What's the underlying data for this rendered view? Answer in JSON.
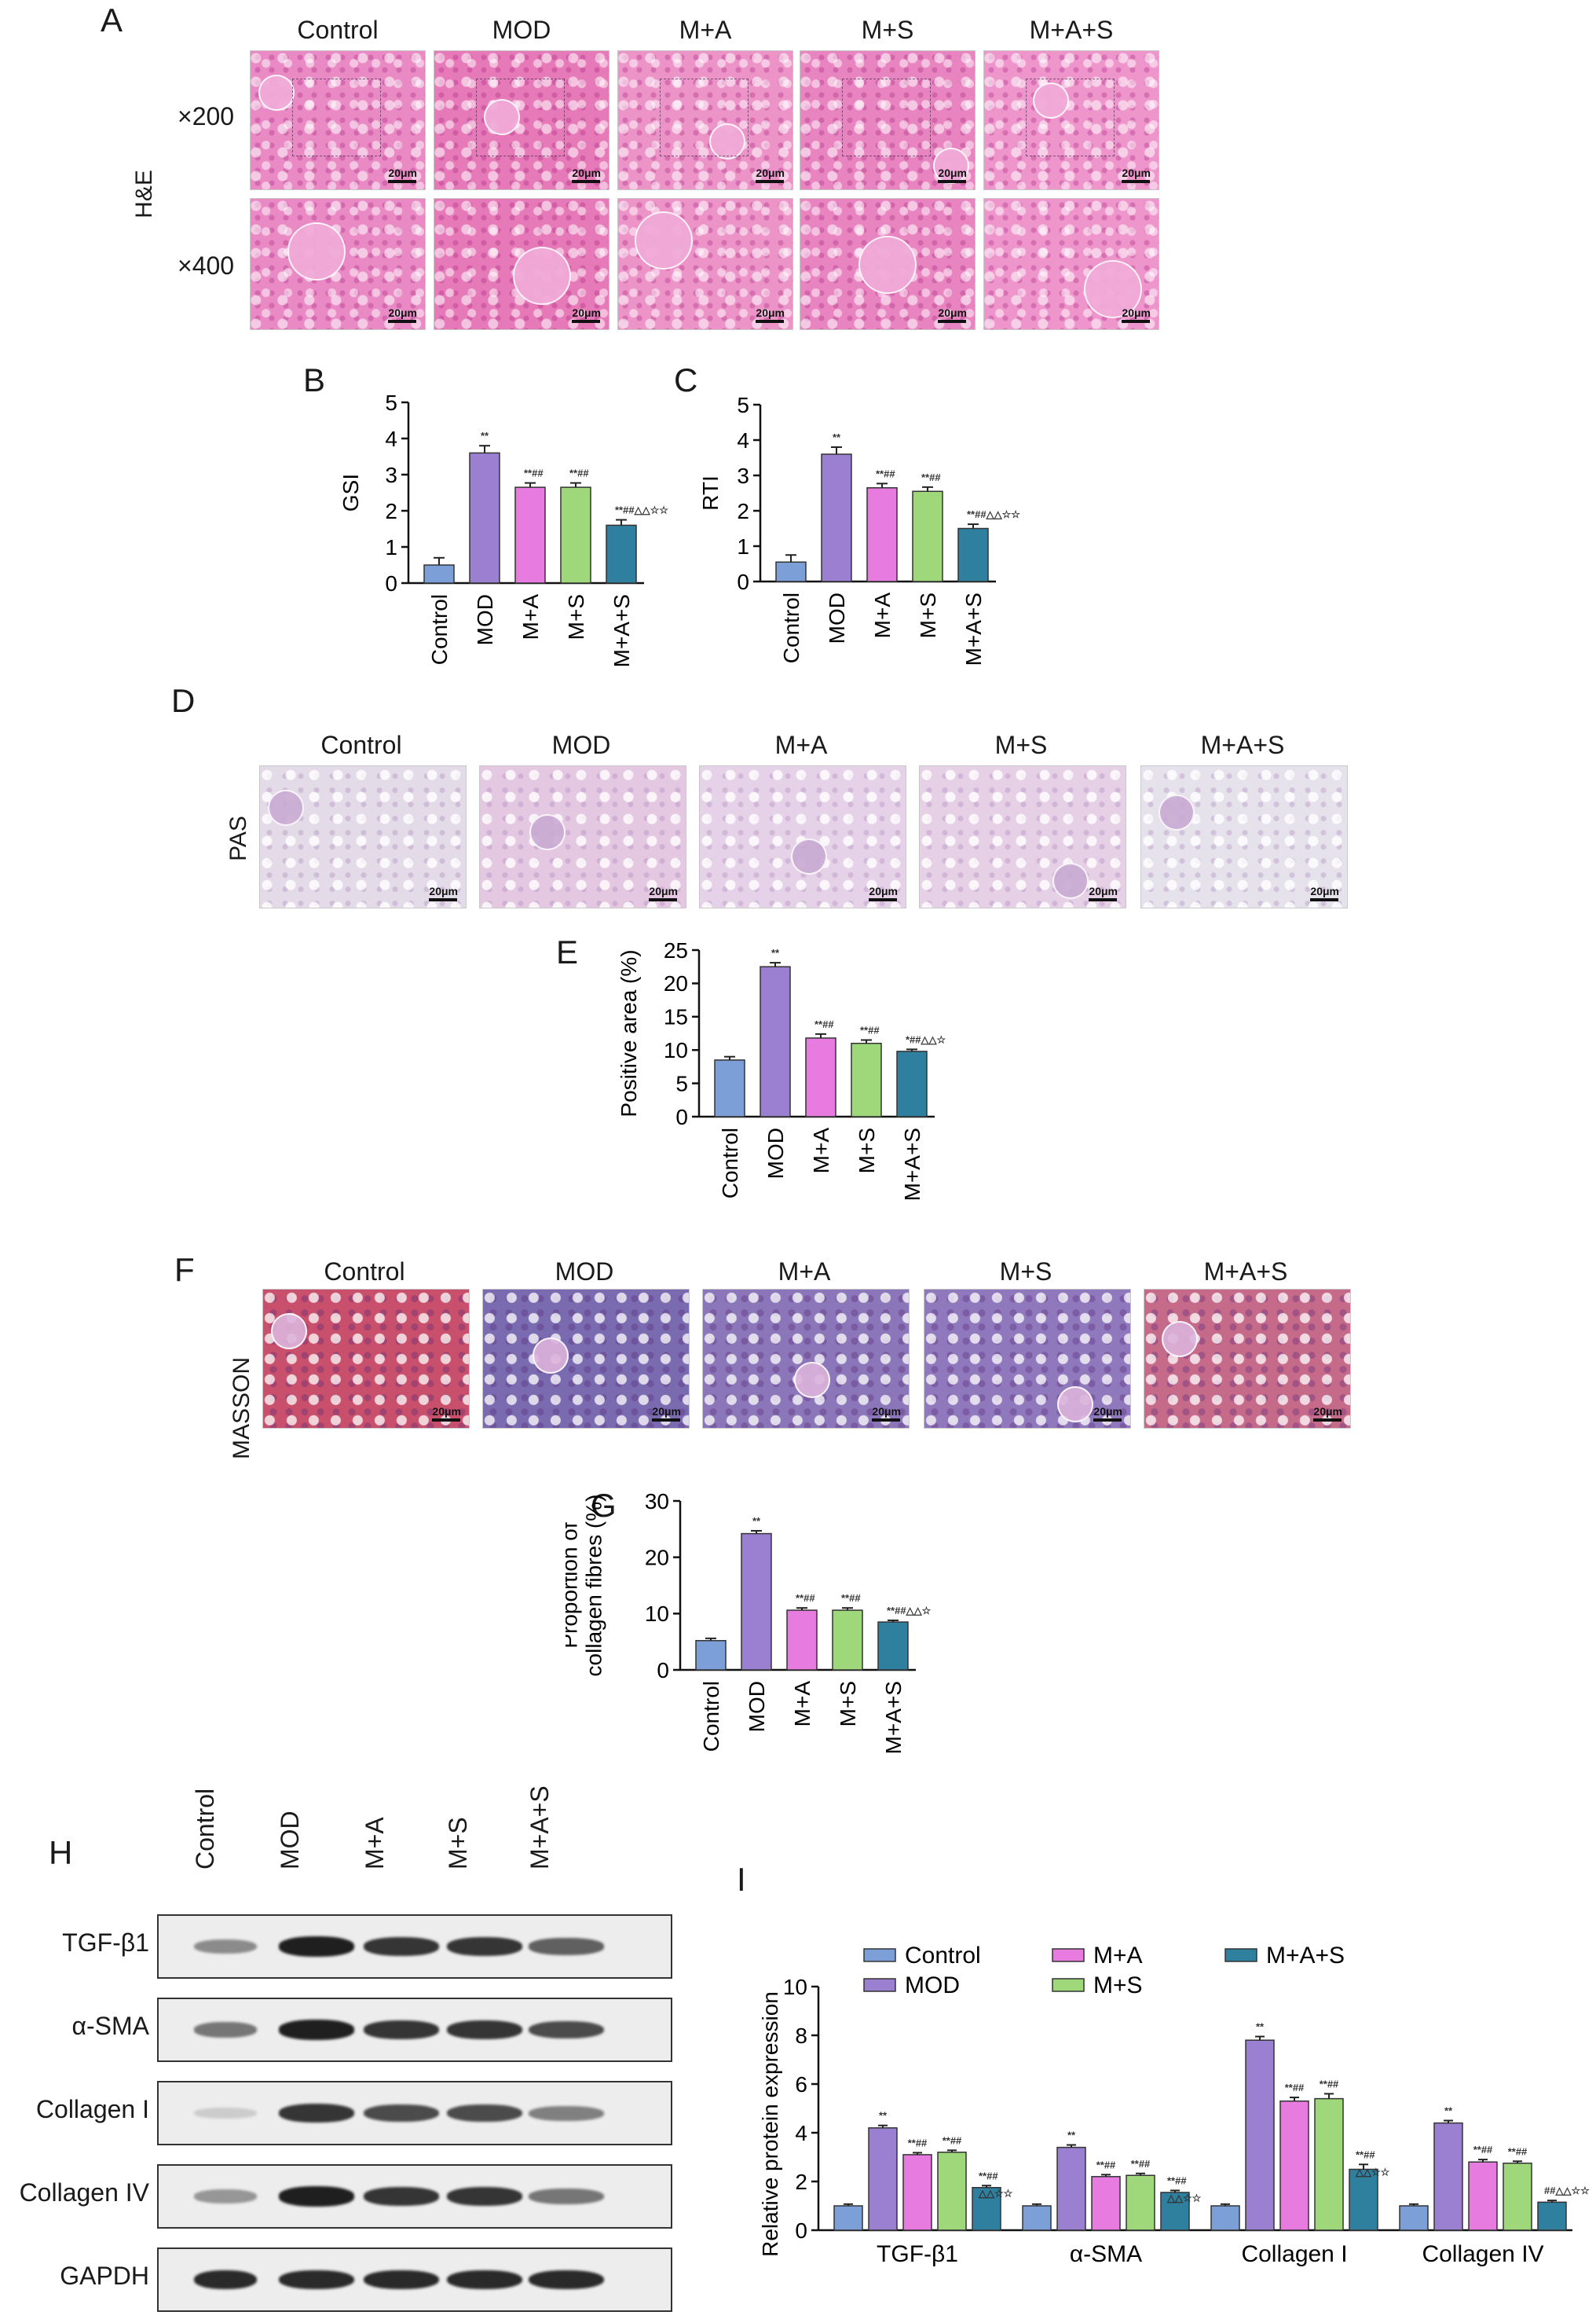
{
  "figure": {
    "panel_letters": [
      "A",
      "B",
      "C",
      "D",
      "E",
      "F",
      "G",
      "H",
      "I"
    ],
    "groups": [
      "Control",
      "MOD",
      "M+A",
      "M+S",
      "M+A+S"
    ],
    "he": {
      "stain": "H&E",
      "rows": [
        "×200",
        "×400"
      ]
    },
    "pas": {
      "stain": "PAS"
    },
    "masson": {
      "stain": "MASSON"
    },
    "scale_bar": "20μm",
    "blot": {
      "lanes": [
        "Control",
        "MOD",
        "M+A",
        "M+S",
        "M+A+S"
      ],
      "proteins": [
        "TGF-β1",
        "α-SMA",
        "Collagen I",
        "Collagen IV",
        "GAPDH"
      ],
      "band_intensity": {
        "TGF-β1": [
          0.45,
          0.95,
          0.85,
          0.85,
          0.65
        ],
        "α-SMA": [
          0.55,
          0.95,
          0.85,
          0.85,
          0.75
        ],
        "Collagen I": [
          0.15,
          0.85,
          0.75,
          0.75,
          0.5
        ],
        "Collagen IV": [
          0.4,
          0.95,
          0.85,
          0.85,
          0.55
        ],
        "GAPDH": [
          0.9,
          0.9,
          0.9,
          0.9,
          0.9
        ]
      }
    },
    "colors": {
      "Control": "#7b9fd6",
      "MOD": "#9b7fd0",
      "M+A": "#e77be0",
      "M+S": "#9fd87a",
      "M+A+S": "#2f7f9f"
    }
  },
  "chart_data": [
    {
      "panel": "B",
      "type": "bar",
      "ylabel": "GSI",
      "categories": [
        "Control",
        "MOD",
        "M+A",
        "M+S",
        "M+A+S"
      ],
      "values": [
        0.5,
        3.6,
        2.65,
        2.65,
        1.6
      ],
      "errors": [
        0.2,
        0.2,
        0.12,
        0.12,
        0.15
      ],
      "ylim": [
        0,
        5
      ],
      "yticks": [
        0,
        1,
        2,
        3,
        4,
        5
      ],
      "annotations": [
        "",
        "**",
        "**##",
        "**##",
        "**##△△☆☆"
      ]
    },
    {
      "panel": "C",
      "type": "bar",
      "ylabel": "RTI",
      "categories": [
        "Control",
        "MOD",
        "M+A",
        "M+S",
        "M+A+S"
      ],
      "values": [
        0.55,
        3.6,
        2.65,
        2.55,
        1.5
      ],
      "errors": [
        0.2,
        0.2,
        0.12,
        0.12,
        0.12
      ],
      "ylim": [
        0,
        5
      ],
      "yticks": [
        0,
        1,
        2,
        3,
        4,
        5
      ],
      "annotations": [
        "",
        "**",
        "**##",
        "**##",
        "**##△△☆☆"
      ]
    },
    {
      "panel": "E",
      "type": "bar",
      "ylabel": "Positive area (%)",
      "categories": [
        "Control",
        "MOD",
        "M+A",
        "M+S",
        "M+A+S"
      ],
      "values": [
        8.5,
        22.5,
        11.8,
        11.0,
        9.8
      ],
      "errors": [
        0.5,
        0.6,
        0.6,
        0.5,
        0.3
      ],
      "ylim": [
        0,
        25
      ],
      "yticks": [
        0,
        5,
        10,
        15,
        20,
        25
      ],
      "annotations": [
        "",
        "**",
        "**##",
        "**##",
        "*##△△☆"
      ]
    },
    {
      "panel": "G",
      "type": "bar",
      "ylabel": "Proportion of collagen fibres (%)",
      "categories": [
        "Control",
        "MOD",
        "M+A",
        "M+S",
        "M+A+S"
      ],
      "values": [
        5.2,
        24.2,
        10.6,
        10.6,
        8.5
      ],
      "errors": [
        0.4,
        0.5,
        0.4,
        0.4,
        0.3
      ],
      "ylim": [
        0,
        30
      ],
      "yticks": [
        0,
        10,
        20,
        30
      ],
      "annotations": [
        "",
        "**",
        "**##",
        "**##",
        "**##△△☆"
      ]
    },
    {
      "panel": "I",
      "type": "bar",
      "ylabel": "Relative protein expression",
      "categories": [
        "TGF-β1",
        "α-SMA",
        "Collagen I",
        "Collagen IV"
      ],
      "series": [
        {
          "name": "Control",
          "values": [
            1.0,
            1.0,
            1.0,
            1.0
          ]
        },
        {
          "name": "MOD",
          "values": [
            4.2,
            3.4,
            7.8,
            4.4
          ]
        },
        {
          "name": "M+A",
          "values": [
            3.1,
            2.2,
            5.3,
            2.8
          ]
        },
        {
          "name": "M+S",
          "values": [
            3.2,
            2.25,
            5.4,
            2.75
          ]
        },
        {
          "name": "M+A+S",
          "values": [
            1.75,
            1.55,
            2.5,
            1.15
          ]
        }
      ],
      "errors": [
        [
          0.07,
          0.07,
          0.07,
          0.07
        ],
        [
          0.1,
          0.1,
          0.15,
          0.1
        ],
        [
          0.08,
          0.08,
          0.15,
          0.1
        ],
        [
          0.08,
          0.08,
          0.2,
          0.08
        ],
        [
          0.08,
          0.08,
          0.2,
          0.07
        ]
      ],
      "annotations": [
        [
          "",
          "",
          "",
          ""
        ],
        [
          "**",
          "**",
          "**",
          "**"
        ],
        [
          "**##",
          "**##",
          "**##",
          "**##"
        ],
        [
          "**##",
          "**##",
          "**##",
          "**##"
        ],
        [
          "**##\n△△☆☆",
          "**##\n△△☆☆",
          "**##\n△△☆☆",
          "##△△☆☆"
        ]
      ],
      "ylim": [
        0,
        10
      ],
      "yticks": [
        0,
        2,
        4,
        6,
        8,
        10
      ],
      "legend": "top"
    }
  ]
}
